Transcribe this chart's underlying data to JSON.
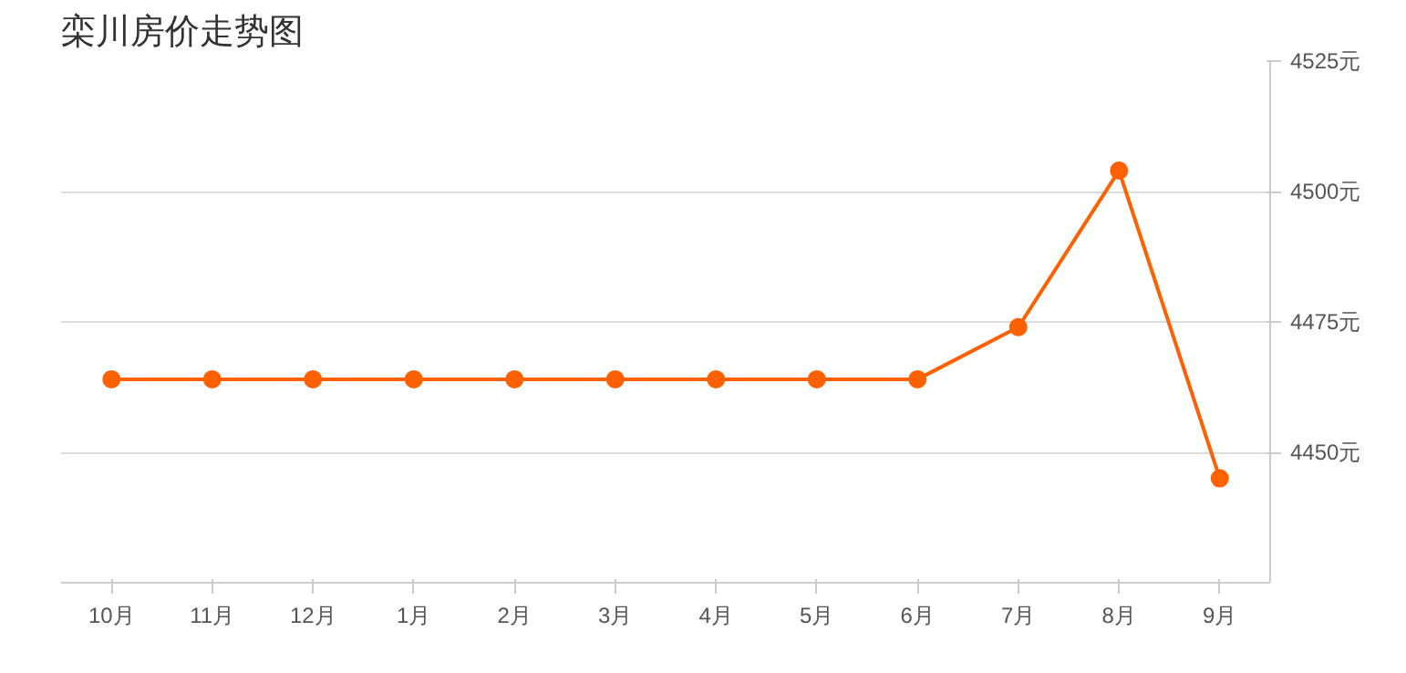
{
  "chart_data": {
    "type": "line",
    "title": "栾川房价走势图",
    "categories": [
      "10月",
      "11月",
      "12月",
      "1月",
      "2月",
      "3月",
      "4月",
      "5月",
      "6月",
      "7月",
      "8月",
      "9月"
    ],
    "series": [
      {
        "color": "#ff6000",
        "values": [
          4464,
          4464,
          4464,
          4464,
          4464,
          4464,
          4464,
          4464,
          4464,
          4474,
          4504,
          4445
        ]
      }
    ],
    "ylim": [
      4425,
      4525
    ],
    "yticks": [
      {
        "value": 4450,
        "label": "4450元"
      },
      {
        "value": 4475,
        "label": "4475元"
      },
      {
        "value": 4500,
        "label": "4500元"
      },
      {
        "value": 4525,
        "label": "4525元"
      }
    ],
    "grid": "y",
    "marker": "circle",
    "line_style": "solid"
  }
}
